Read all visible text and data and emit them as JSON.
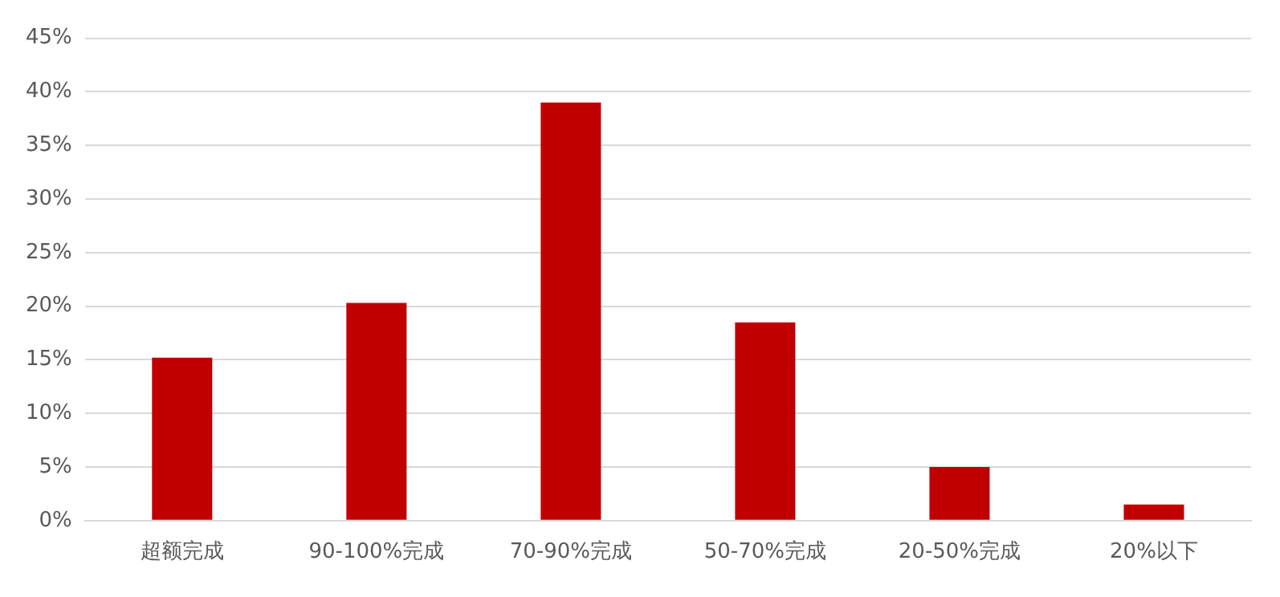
{
  "chart_data": {
    "type": "bar",
    "categories": [
      "超额完成",
      "90-100%完成",
      "70-90%完成",
      "50-70%完成",
      "20-50%完成",
      "20%以下"
    ],
    "values": [
      15.2,
      20.3,
      39.0,
      18.5,
      5.0,
      1.5
    ],
    "color": "#c00000",
    "ylim": [
      0,
      45
    ],
    "yticks": [
      {
        "value": 0,
        "label": "0%"
      },
      {
        "value": 5,
        "label": "5%"
      },
      {
        "value": 10,
        "label": "10%"
      },
      {
        "value": 15,
        "label": "15%"
      },
      {
        "value": 20,
        "label": "20%"
      },
      {
        "value": 25,
        "label": "25%"
      },
      {
        "value": 30,
        "label": "30%"
      },
      {
        "value": 35,
        "label": "35%"
      },
      {
        "value": 40,
        "label": "40%"
      },
      {
        "value": 45,
        "label": "45%"
      }
    ],
    "grid": "y",
    "legend": false
  }
}
